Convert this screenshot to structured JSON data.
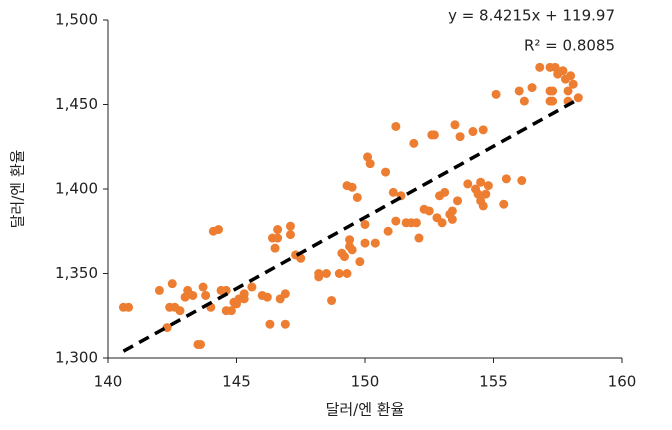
{
  "chart_data": {
    "type": "scatter",
    "x_label": "달러/엔 환율",
    "y_label": "달러/엔 환율",
    "xlim": [
      140,
      160
    ],
    "xticks": [
      140,
      145,
      150,
      155,
      160
    ],
    "ylim": [
      1300,
      1500
    ],
    "yticks": [
      {
        "value": 1300,
        "label": "1,300"
      },
      {
        "value": 1350,
        "label": "1,350"
      },
      {
        "value": 1400,
        "label": "1,400"
      },
      {
        "value": 1450,
        "label": "1,450"
      },
      {
        "value": 1500,
        "label": "1,500"
      }
    ],
    "color": "#ed7d31",
    "trendline": {
      "label": "y = 8.4215x + 119.97",
      "r2_label": "R² = 0.8085",
      "slope": 8.4215,
      "intercept": 119.97,
      "xrange": [
        140.6,
        158.3
      ],
      "color": "#000000"
    },
    "x": [
      140.6,
      140.8,
      142,
      142.3,
      142.4,
      142.5,
      142.6,
      142.8,
      143,
      143.1,
      143.3,
      143.5,
      143.6,
      143.7,
      143.8,
      144,
      144.1,
      144.3,
      144.4,
      144.6,
      144.6,
      144.8,
      144.9,
      145,
      145.1,
      145.3,
      145.3,
      145.6,
      146,
      146.2,
      146.3,
      146.4,
      146.5,
      146.6,
      146.6,
      146.7,
      146.9,
      146.9,
      147.1,
      147.1,
      147.3,
      147.5,
      148.2,
      148.2,
      148.5,
      148.7,
      149,
      149.1,
      149.2,
      149.3,
      149.3,
      149.4,
      149.4,
      149.5,
      149.5,
      149.7,
      149.8,
      150,
      150,
      150.1,
      150.2,
      150.4,
      150.8,
      150.9,
      151.1,
      151.2,
      151.2,
      151.4,
      151.6,
      151.8,
      151.9,
      152,
      152.1,
      152.3,
      152.5,
      152.6,
      152.7,
      152.8,
      152.9,
      153,
      153.1,
      153.3,
      153.4,
      153.4,
      153.5,
      153.6,
      153.7,
      154,
      154.2,
      154.3,
      154.4,
      154.5,
      154.5,
      154.6,
      154.6,
      154.7,
      154.8,
      155.1,
      155.4,
      155.5,
      156.1,
      156,
      156.2,
      156.5,
      156.8,
      157.2,
      157.2,
      157.2,
      157.3,
      157.3,
      157.4,
      157.5,
      157.7,
      157.8,
      157.9,
      157.9,
      158,
      158.1,
      158.3
    ],
    "values": [
      1330,
      1330,
      1340,
      1318,
      1330,
      1344,
      1330,
      1328,
      1336,
      1340,
      1337,
      1308,
      1308,
      1342,
      1337,
      1330,
      1375,
      1376,
      1340,
      1340,
      1328,
      1328,
      1333,
      1332,
      1335,
      1335,
      1338,
      1342,
      1337,
      1336,
      1320,
      1371,
      1365,
      1376,
      1371,
      1335,
      1320,
      1338,
      1378,
      1373,
      1361,
      1359,
      1350,
      1348,
      1350,
      1334,
      1350,
      1362,
      1360,
      1350,
      1402,
      1366,
      1370,
      1401,
      1364,
      1395,
      1357,
      1368,
      1379,
      1419,
      1415,
      1368,
      1410,
      1375,
      1398,
      1381,
      1437,
      1396,
      1380,
      1380,
      1427,
      1380,
      1371,
      1388,
      1387,
      1432,
      1432,
      1383,
      1396,
      1380,
      1398,
      1385,
      1382,
      1387,
      1438,
      1393,
      1431,
      1403,
      1434,
      1400,
      1397,
      1393,
      1404,
      1390,
      1435,
      1397,
      1402,
      1456,
      1391,
      1406,
      1405,
      1458,
      1452,
      1460,
      1472,
      1472,
      1458,
      1452,
      1458,
      1452,
      1472,
      1468,
      1470,
      1465,
      1458,
      1452,
      1467,
      1462,
      1454
    ]
  }
}
